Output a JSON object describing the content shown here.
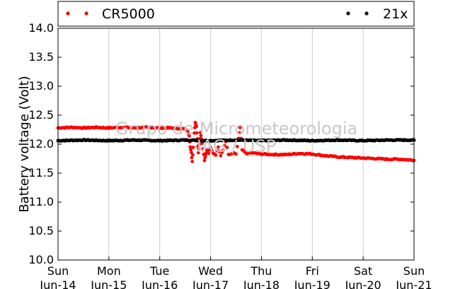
{
  "chart_data": {
    "type": "scatter",
    "title": "",
    "xlabel": "",
    "ylabel": "Battery voltage (Volt)",
    "x_unit": "days",
    "xlim": [
      0,
      7
    ],
    "ylim": [
      10.0,
      14.0
    ],
    "grid": "vertical-only",
    "legend_placement": "top, outside plot",
    "x_ticks": [
      {
        "x": 0,
        "line1": "Sun",
        "line2": "Jun-14"
      },
      {
        "x": 1,
        "line1": "Mon",
        "line2": "Jun-15"
      },
      {
        "x": 2,
        "line1": "Tue",
        "line2": "Jun-16"
      },
      {
        "x": 3,
        "line1": "Wed",
        "line2": "Jun-17"
      },
      {
        "x": 4,
        "line1": "Thu",
        "line2": "Jun-18"
      },
      {
        "x": 5,
        "line1": "Fri",
        "line2": "Jun-19"
      },
      {
        "x": 6,
        "line1": "Sat",
        "line2": "Jun-20"
      },
      {
        "x": 7,
        "line1": "Sun",
        "line2": "Jun-21"
      }
    ],
    "y_ticks": [
      {
        "value": 10.0,
        "label": "10.0"
      },
      {
        "value": 10.5,
        "label": "10.5"
      },
      {
        "value": 11.0,
        "label": "11.0"
      },
      {
        "value": 11.5,
        "label": "11.5"
      },
      {
        "value": 12.0,
        "label": "12.0"
      },
      {
        "value": 12.5,
        "label": "12.5"
      },
      {
        "value": 13.0,
        "label": "13.0"
      },
      {
        "value": 13.5,
        "label": "13.5"
      },
      {
        "value": 14.0,
        "label": "14.0"
      }
    ],
    "watermark": [
      "Grupo de Micrometeorologia",
      "IAG / USP"
    ],
    "series": [
      {
        "name": "CR5000",
        "color": "#ff0000",
        "points": [
          [
            0.0,
            12.28
          ],
          [
            0.25,
            12.29
          ],
          [
            0.5,
            12.28
          ],
          [
            0.75,
            12.29
          ],
          [
            1.0,
            12.28
          ],
          [
            1.25,
            12.29
          ],
          [
            1.5,
            12.28
          ],
          [
            1.75,
            12.29
          ],
          [
            2.0,
            12.28
          ],
          [
            2.2,
            12.28
          ],
          [
            2.4,
            12.27
          ],
          [
            2.5,
            12.26
          ],
          [
            2.55,
            12.22
          ],
          [
            2.58,
            12.15
          ],
          [
            2.6,
            11.95
          ],
          [
            2.62,
            11.85
          ],
          [
            2.64,
            11.7
          ],
          [
            2.66,
            11.95
          ],
          [
            2.68,
            12.2
          ],
          [
            2.7,
            12.38
          ],
          [
            2.72,
            12.3
          ],
          [
            2.74,
            12.1
          ],
          [
            2.76,
            11.85
          ],
          [
            2.78,
            12.0
          ],
          [
            2.8,
            12.2
          ],
          [
            2.82,
            12.1
          ],
          [
            2.85,
            11.92
          ],
          [
            2.88,
            11.72
          ],
          [
            2.9,
            11.8
          ],
          [
            2.93,
            11.9
          ],
          [
            2.96,
            11.85
          ],
          [
            3.0,
            11.95
          ],
          [
            3.05,
            11.85
          ],
          [
            3.1,
            11.82
          ],
          [
            3.15,
            11.95
          ],
          [
            3.2,
            11.8
          ],
          [
            3.25,
            11.9
          ],
          [
            3.3,
            12.05
          ],
          [
            3.35,
            11.82
          ],
          [
            3.4,
            11.82
          ],
          [
            3.45,
            11.85
          ],
          [
            3.5,
            11.82
          ],
          [
            3.55,
            12.1
          ],
          [
            3.58,
            12.28
          ],
          [
            3.62,
            11.9
          ],
          [
            3.7,
            11.84
          ],
          [
            3.8,
            11.85
          ],
          [
            3.9,
            11.84
          ],
          [
            4.0,
            11.83
          ],
          [
            4.25,
            11.82
          ],
          [
            4.5,
            11.82
          ],
          [
            4.75,
            11.84
          ],
          [
            5.0,
            11.83
          ],
          [
            5.25,
            11.8
          ],
          [
            5.5,
            11.78
          ],
          [
            5.75,
            11.77
          ],
          [
            6.0,
            11.76
          ],
          [
            6.25,
            11.75
          ],
          [
            6.5,
            11.74
          ],
          [
            6.75,
            11.74
          ],
          [
            7.0,
            11.72
          ]
        ]
      },
      {
        "name": "21x",
        "color": "#000000",
        "points": [
          [
            0.0,
            12.06
          ],
          [
            0.5,
            12.07
          ],
          [
            1.0,
            12.06
          ],
          [
            1.5,
            12.07
          ],
          [
            2.0,
            12.06
          ],
          [
            2.5,
            12.07
          ],
          [
            3.0,
            12.06
          ],
          [
            3.5,
            12.07
          ],
          [
            4.0,
            12.06
          ],
          [
            4.5,
            12.07
          ],
          [
            5.0,
            12.06
          ],
          [
            5.5,
            12.07
          ],
          [
            6.0,
            12.06
          ],
          [
            6.5,
            12.07
          ],
          [
            7.0,
            12.07
          ]
        ]
      }
    ]
  }
}
